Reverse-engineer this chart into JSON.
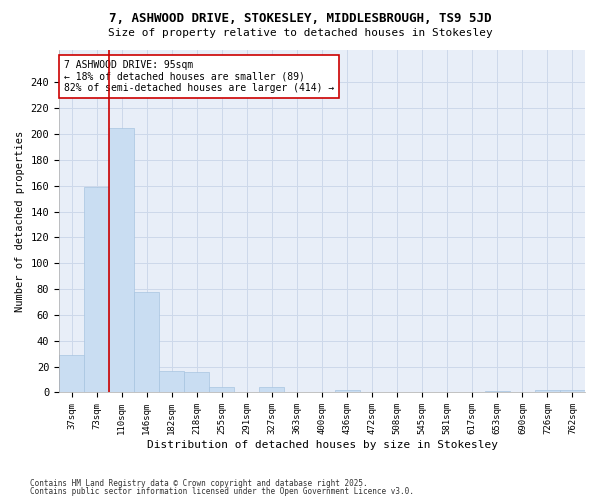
{
  "title1": "7, ASHWOOD DRIVE, STOKESLEY, MIDDLESBROUGH, TS9 5JD",
  "title2": "Size of property relative to detached houses in Stokesley",
  "xlabel": "Distribution of detached houses by size in Stokesley",
  "ylabel": "Number of detached properties",
  "categories": [
    "37sqm",
    "73sqm",
    "110sqm",
    "146sqm",
    "182sqm",
    "218sqm",
    "255sqm",
    "291sqm",
    "327sqm",
    "363sqm",
    "400sqm",
    "436sqm",
    "472sqm",
    "508sqm",
    "545sqm",
    "581sqm",
    "617sqm",
    "653sqm",
    "690sqm",
    "726sqm",
    "762sqm"
  ],
  "values": [
    29,
    159,
    205,
    78,
    17,
    16,
    4,
    0,
    4,
    0,
    0,
    2,
    0,
    0,
    0,
    0,
    0,
    1,
    0,
    2,
    2
  ],
  "bar_color": "#c9ddf2",
  "bar_edge_color": "#a8c4e0",
  "grid_color": "#cdd8ea",
  "background_color": "#e8eef8",
  "vline_color": "#cc0000",
  "annotation_text": "7 ASHWOOD DRIVE: 95sqm\n← 18% of detached houses are smaller (89)\n82% of semi-detached houses are larger (414) →",
  "annotation_box_color": "#ffffff",
  "footer1": "Contains HM Land Registry data © Crown copyright and database right 2025.",
  "footer2": "Contains public sector information licensed under the Open Government Licence v3.0.",
  "ylim": [
    0,
    265
  ],
  "yticks": [
    0,
    20,
    40,
    60,
    80,
    100,
    120,
    140,
    160,
    180,
    200,
    220,
    240
  ]
}
